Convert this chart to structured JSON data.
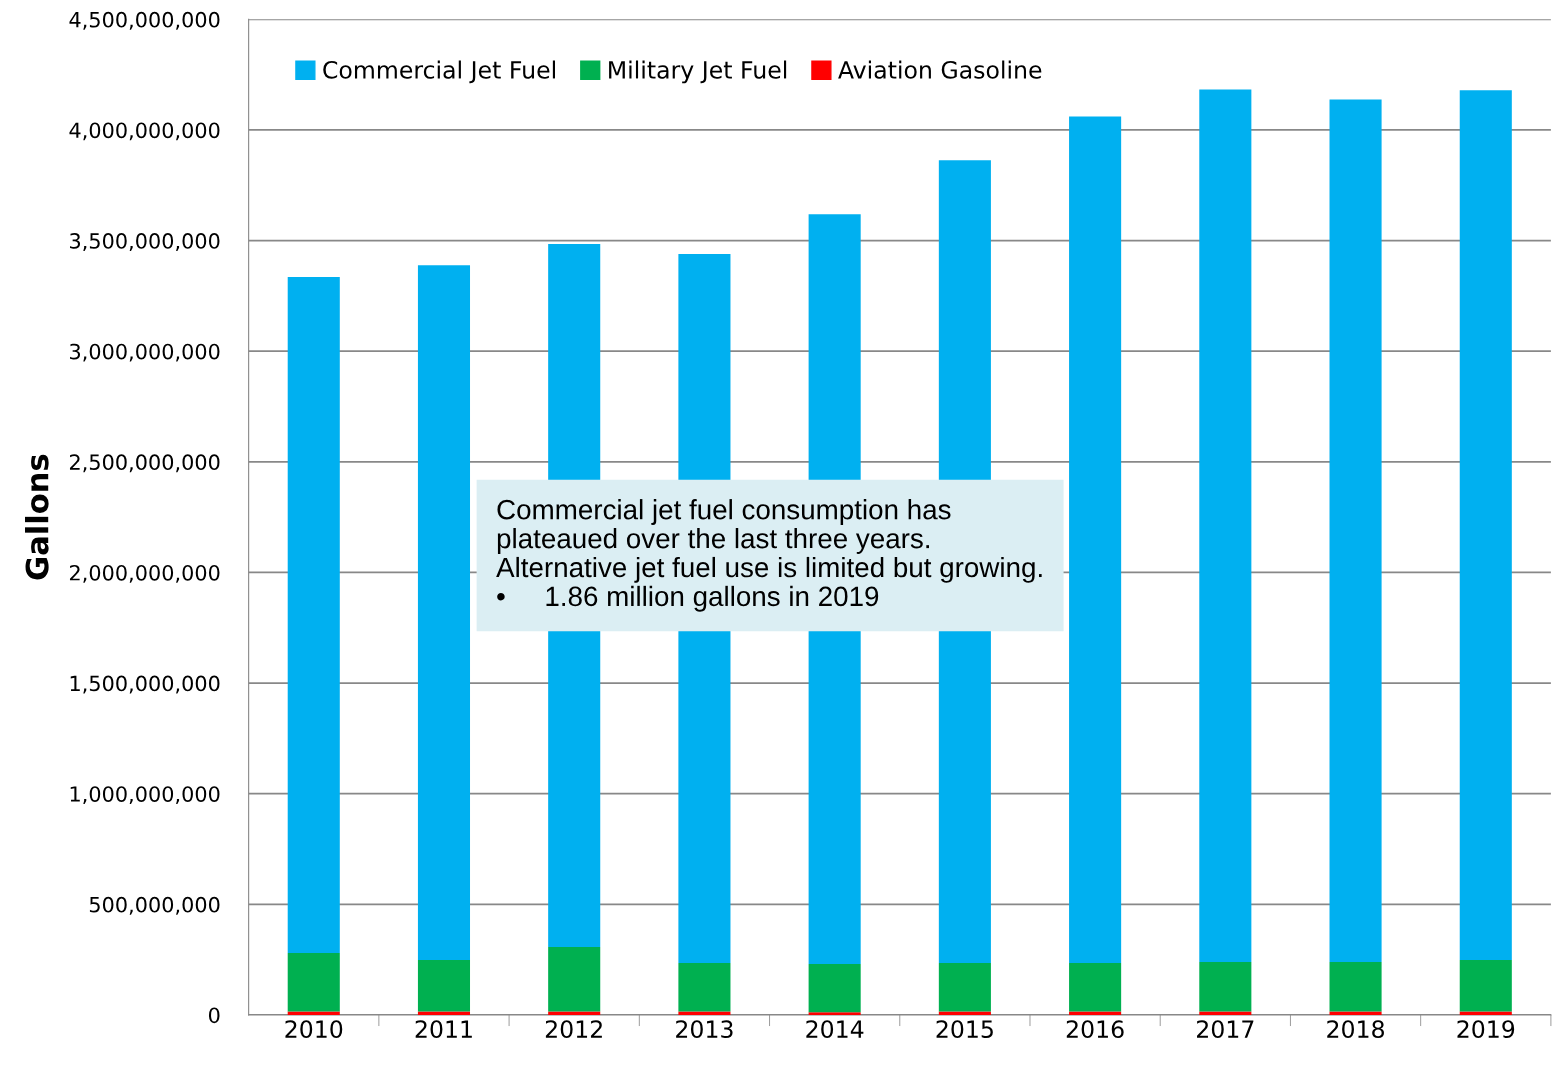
{
  "chart_data": {
    "type": "bar",
    "stacked": true,
    "ylabel": "Gallons",
    "categories": [
      "2010",
      "2011",
      "2012",
      "2013",
      "2014",
      "2015",
      "2016",
      "2017",
      "2018",
      "2019"
    ],
    "series": [
      {
        "name": "Aviation Gasoline",
        "color": "#ff0000",
        "values": [
          15000000,
          15000000,
          15000000,
          15000000,
          12000000,
          15000000,
          15000000,
          15000000,
          15000000,
          15000000
        ]
      },
      {
        "name": "Military Jet Fuel",
        "color": "#00b050",
        "values": [
          265000000,
          233000000,
          292000000,
          220000000,
          218000000,
          220000000,
          220000000,
          224000000,
          224000000,
          233000000
        ]
      },
      {
        "name": "Commercial Jet Fuel",
        "color": "#00b0f0",
        "values": [
          3055000000,
          3141000000,
          3177000000,
          3204000000,
          3389000000,
          3628000000,
          3826000000,
          3944000000,
          3899000000,
          3931000000
        ]
      }
    ],
    "ylim": [
      0,
      4500000000
    ],
    "yticks": [
      0,
      {
        "value": 500000000,
        "label": "500,000,000"
      },
      {
        "value": 1000000000,
        "label": "1,000,000,000"
      },
      {
        "value": 1500000000,
        "label": "1,500,000,000"
      },
      {
        "value": 2000000000,
        "label": "2,000,000,000"
      },
      {
        "value": 2500000000,
        "label": "2,500,000,000"
      },
      {
        "value": 3000000000,
        "label": "3,000,000,000"
      },
      {
        "value": 3500000000,
        "label": "3,500,000,000"
      },
      {
        "value": 4000000000,
        "label": "4,000,000,000"
      },
      {
        "value": 4500000000,
        "label": "4,500,000,000"
      }
    ],
    "grid": "y",
    "legend": "top left",
    "annotations": [
      "Commercial jet fuel consumption has\nplateaued over the last three years.\nAlternative jet fuel use is limited but growing.\n•     1.86 million gallons in 2019"
    ]
  }
}
